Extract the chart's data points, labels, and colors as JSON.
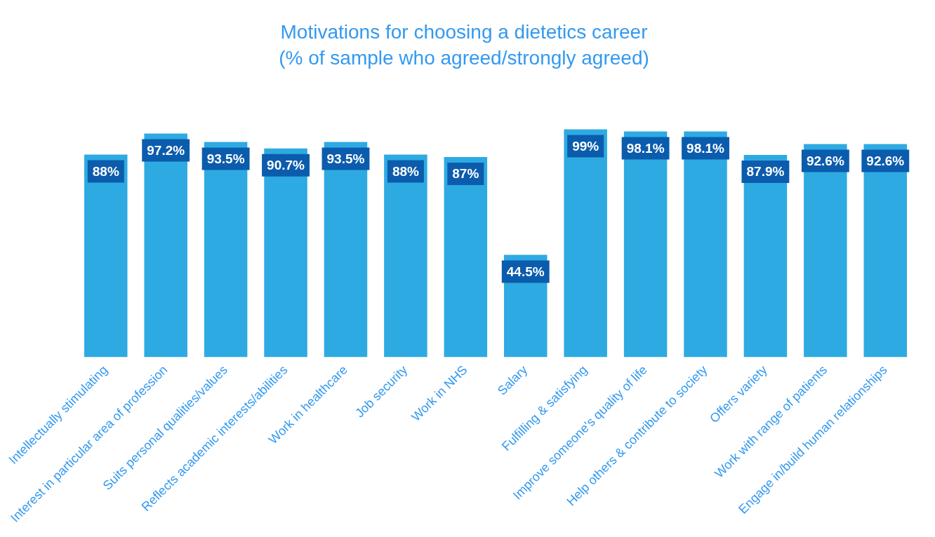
{
  "chart_data": {
    "type": "bar",
    "title": "Motivations for choosing a dietetics career",
    "subtitle": "(% of sample who agreed/strongly agreed)",
    "categories": [
      "Intellectually stimulating",
      "Interest in particular area of profession",
      "Suits personal qualities/values",
      "Reflects academic interests/abilities",
      "Work in healthcare",
      "Job security",
      "Work in NHS",
      "Salary",
      "Fulfilling & satisfying",
      "Improve someone's quality of life",
      "Help others & contribute to society",
      "Offers variety",
      "Work with range of patients",
      "Engage in/build human relationships"
    ],
    "values": [
      88,
      97.2,
      93.5,
      90.7,
      93.5,
      88,
      87,
      44.5,
      99,
      98.1,
      98.1,
      87.9,
      92.6,
      92.6
    ],
    "value_labels": [
      "88%",
      "97.2%",
      "93.5%",
      "90.7%",
      "93.5%",
      "88%",
      "87%",
      "44.5%",
      "99%",
      "98.1%",
      "98.1%",
      "87.9%",
      "92.6%",
      "92.6%"
    ],
    "color": "#2eaae2",
    "grid": false,
    "legend": false,
    "tick_labels": "x"
  }
}
